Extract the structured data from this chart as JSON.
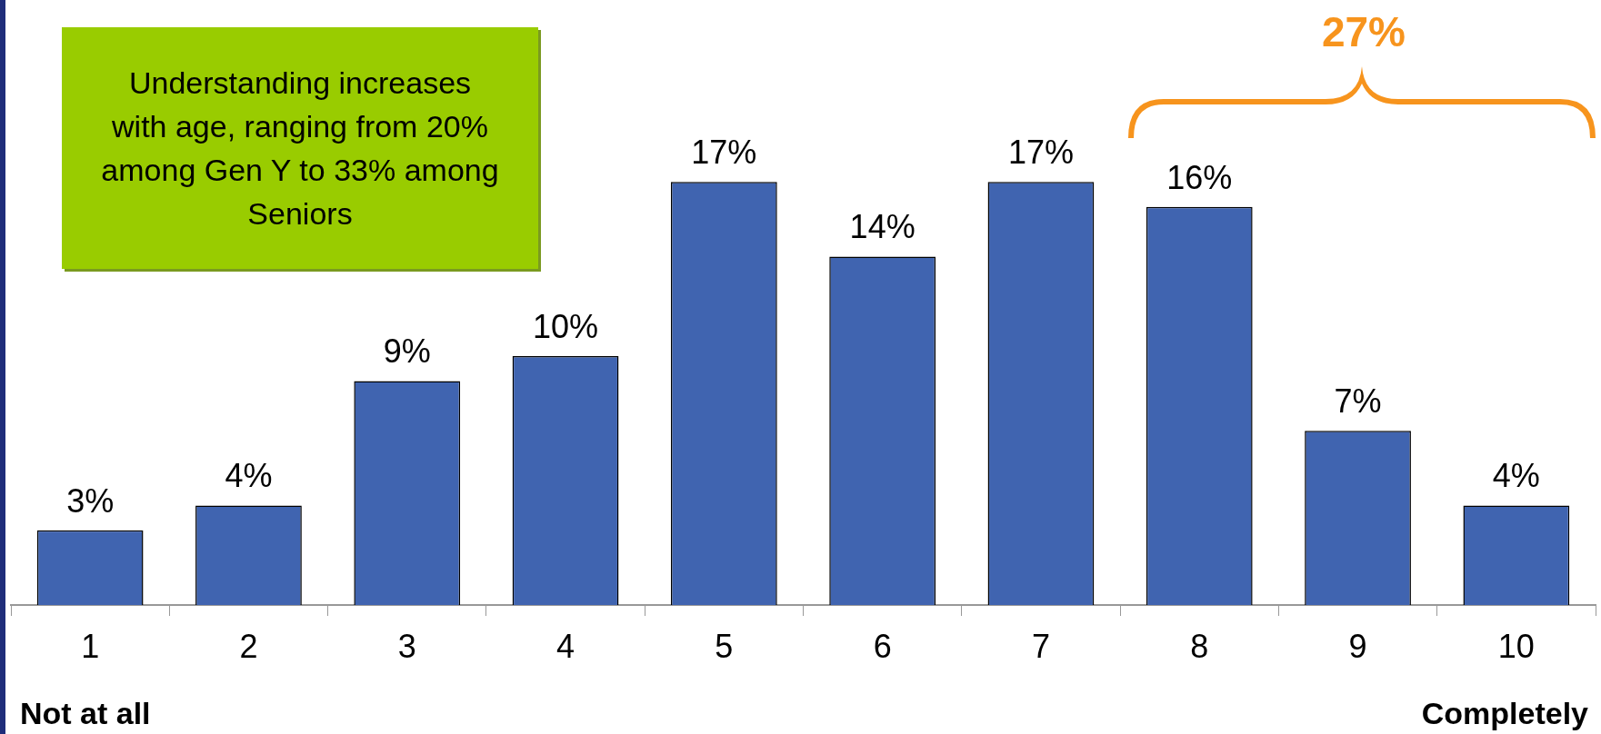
{
  "chart_data": {
    "type": "bar",
    "categories": [
      "1",
      "2",
      "3",
      "4",
      "5",
      "6",
      "7",
      "8",
      "9",
      "10"
    ],
    "values": [
      3,
      4,
      9,
      10,
      17,
      14,
      17,
      16,
      7,
      4
    ],
    "value_labels": [
      "3%",
      "4%",
      "9%",
      "10%",
      "17%",
      "14%",
      "17%",
      "16%",
      "7%",
      "4%"
    ],
    "color": "#4064b0",
    "grid": false,
    "legend": false,
    "tick_labels": "x",
    "annotations": [
      "Understanding increases with age, ranging from 20% among Gen Y to 33% among Seniors",
      "27%",
      "Not at all",
      "Completely"
    ]
  }
}
